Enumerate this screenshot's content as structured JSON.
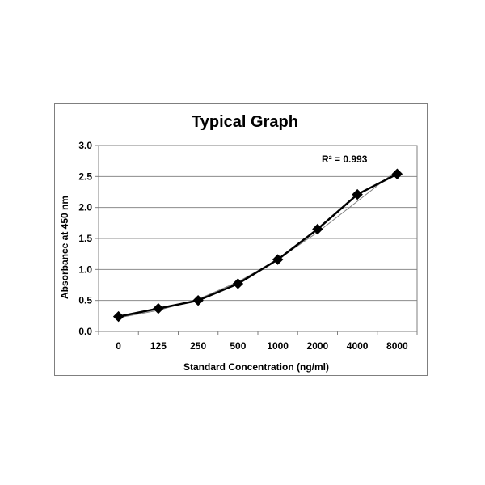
{
  "chart_data": {
    "type": "line",
    "title": "Typical Graph",
    "xlabel": "Standard Concentration (ng/ml)",
    "ylabel": "Absorbance at 450 nm",
    "categories": [
      "0",
      "125",
      "250",
      "500",
      "1000",
      "2000",
      "4000",
      "8000"
    ],
    "series": [
      {
        "values": [
          0.24,
          0.37,
          0.5,
          0.77,
          1.16,
          1.65,
          2.21,
          2.54
        ],
        "marker": "diamond",
        "color": "#000000"
      }
    ],
    "trendline": {
      "values": [
        0.22,
        0.34,
        0.52,
        0.8,
        1.16,
        1.6,
        2.1,
        2.6
      ],
      "color": "#808080"
    },
    "annotation": "R² = 0.993",
    "ylim": [
      0,
      3.0
    ],
    "yticks": [
      "0.0",
      "0.5",
      "1.0",
      "1.5",
      "2.0",
      "2.5",
      "3.0"
    ],
    "grid": true,
    "legend": "none"
  }
}
